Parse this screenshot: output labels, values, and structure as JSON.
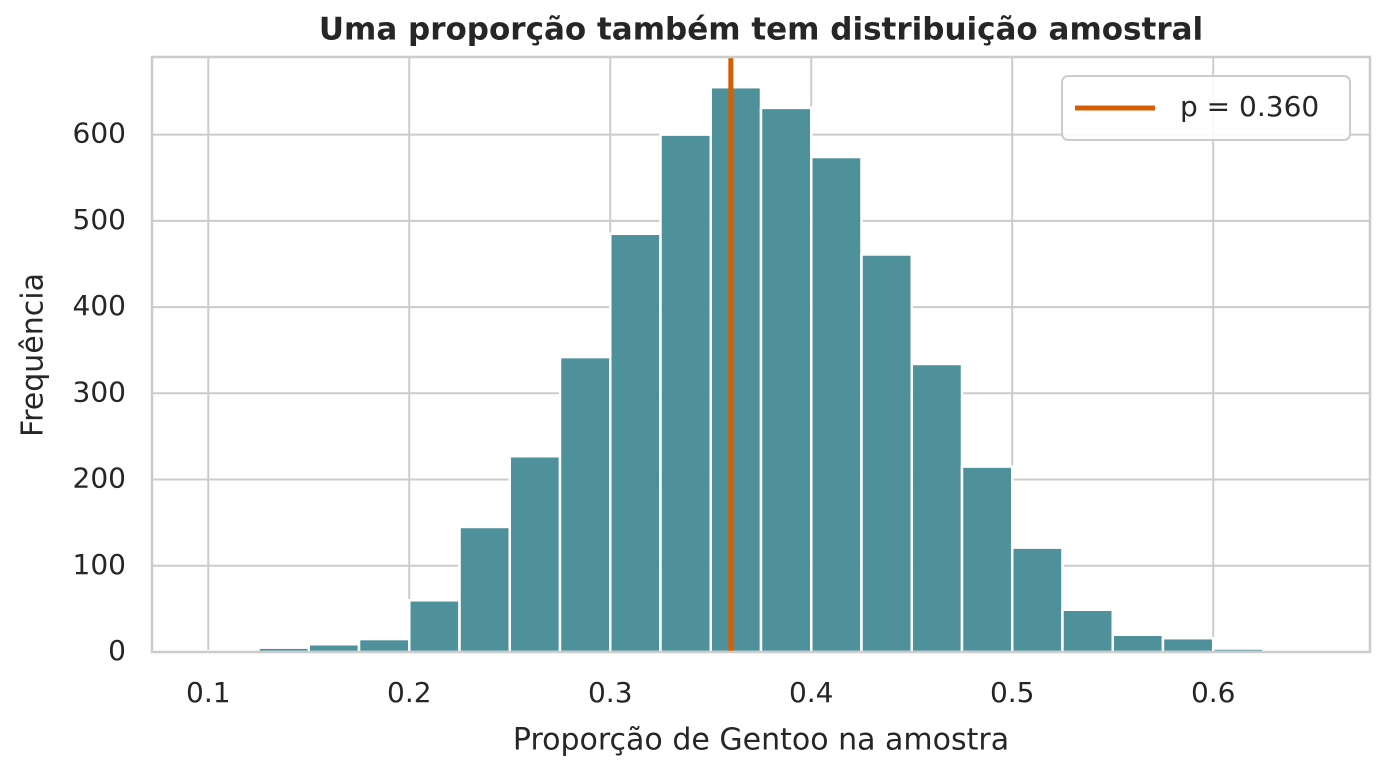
{
  "chart_data": {
    "type": "histogram",
    "title": "Uma proporção também tem distribuição amostral",
    "x_label": "Proporção de Gentoo na amostra",
    "y_label": "Frequência",
    "bins": [
      0.1,
      0.125,
      0.15,
      0.175,
      0.2,
      0.225,
      0.25,
      0.275,
      0.3,
      0.325,
      0.35,
      0.375,
      0.4,
      0.425,
      0.45,
      0.475,
      0.5,
      0.525,
      0.55,
      0.575,
      0.6,
      0.625,
      0.65,
      0.675
    ],
    "values": [
      1,
      5,
      9,
      15,
      60,
      145,
      227,
      342,
      485,
      600,
      655,
      631,
      574,
      461,
      334,
      215,
      121,
      49,
      20,
      16,
      4,
      1,
      1
    ],
    "color": "#4a8f99",
    "xlim": [
      0.072,
      0.678
    ],
    "ylim": [
      0,
      690
    ],
    "xticks": [
      0.1,
      0.2,
      0.3,
      0.4,
      0.5,
      0.6
    ],
    "yticks": [
      0,
      100,
      200,
      300,
      400,
      500,
      600
    ],
    "grid": true,
    "reference_line": {
      "value": 0.36,
      "label": "p = 0.360",
      "color": "#d55e00"
    },
    "legend_position": "upper right"
  }
}
